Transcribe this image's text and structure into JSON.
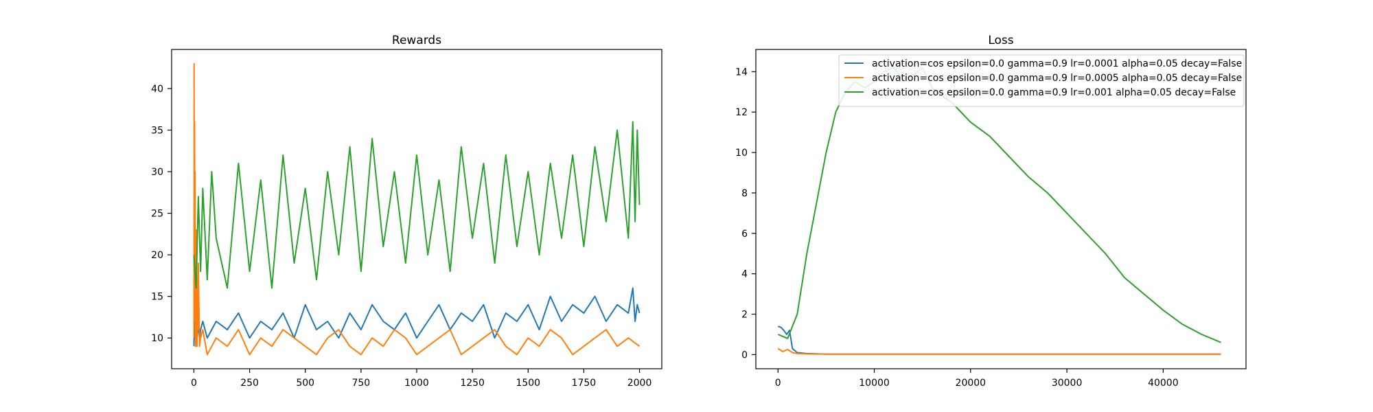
{
  "chart_data": [
    {
      "type": "line",
      "title": "Rewards",
      "xlabel": "",
      "ylabel": "",
      "xlim": [
        -100,
        2100
      ],
      "ylim": [
        6.3,
        44.7
      ],
      "xticks": [
        0,
        250,
        500,
        750,
        1000,
        1250,
        1500,
        1750,
        2000
      ],
      "xtick_labels": [
        "0",
        "250",
        "500",
        "750",
        "1000",
        "1250",
        "1500",
        "1750",
        "2000"
      ],
      "yticks": [
        10,
        15,
        20,
        25,
        30,
        35,
        40
      ],
      "ytick_labels": [
        "10",
        "15",
        "20",
        "25",
        "30",
        "35",
        "40"
      ],
      "grid": false,
      "series": [
        {
          "color": "#1f77b4",
          "x": [
            0,
            2,
            4,
            6,
            8,
            10,
            15,
            20,
            25,
            30,
            40,
            60,
            100,
            150,
            200,
            250,
            300,
            350,
            400,
            450,
            500,
            550,
            600,
            650,
            700,
            750,
            800,
            850,
            900,
            950,
            1000,
            1050,
            1100,
            1150,
            1200,
            1250,
            1300,
            1350,
            1400,
            1450,
            1500,
            1550,
            1600,
            1650,
            1700,
            1750,
            1800,
            1850,
            1900,
            1950,
            1970,
            1980,
            1990,
            2000
          ],
          "y": [
            9,
            13,
            10,
            12,
            9,
            11,
            10,
            12,
            10,
            11,
            12,
            10,
            12,
            11,
            13,
            10,
            12,
            11,
            13,
            10,
            14,
            11,
            12,
            10,
            13,
            11,
            14,
            12,
            11,
            13,
            10,
            12,
            14,
            11,
            13,
            12,
            14,
            10,
            13,
            12,
            14,
            11,
            15,
            12,
            14,
            13,
            15,
            12,
            14,
            13,
            16,
            12,
            14,
            13
          ]
        },
        {
          "color": "#ff7f0e",
          "x": [
            0,
            1,
            2,
            3,
            4,
            5,
            6,
            7,
            8,
            9,
            10,
            12,
            14,
            16,
            18,
            20,
            25,
            30,
            40,
            60,
            100,
            150,
            200,
            250,
            300,
            350,
            400,
            450,
            500,
            550,
            600,
            650,
            700,
            750,
            800,
            850,
            900,
            950,
            1000,
            1050,
            1100,
            1150,
            1200,
            1250,
            1300,
            1350,
            1400,
            1450,
            1500,
            1550,
            1600,
            1650,
            1700,
            1750,
            1800,
            1850,
            1900,
            1950,
            2000
          ],
          "y": [
            10,
            43,
            22,
            36,
            14,
            30,
            12,
            20,
            9,
            16,
            10,
            23,
            9,
            17,
            11,
            19,
            9,
            10,
            11,
            8,
            10,
            9,
            11,
            8,
            10,
            9,
            11,
            10,
            9,
            8,
            10,
            11,
            9,
            8,
            10,
            9,
            11,
            10,
            8,
            9,
            10,
            11,
            8,
            9,
            10,
            11,
            9,
            8,
            10,
            9,
            11,
            10,
            8,
            9,
            10,
            11,
            9,
            10,
            9
          ]
        },
        {
          "color": "#2ca02c",
          "x": [
            0,
            10,
            20,
            30,
            40,
            60,
            80,
            100,
            150,
            200,
            250,
            300,
            350,
            400,
            450,
            500,
            550,
            600,
            650,
            700,
            750,
            800,
            850,
            900,
            950,
            1000,
            1050,
            1100,
            1150,
            1200,
            1250,
            1300,
            1350,
            1400,
            1450,
            1500,
            1550,
            1600,
            1650,
            1700,
            1750,
            1800,
            1850,
            1900,
            1950,
            1970,
            1980,
            1990,
            2000
          ],
          "y": [
            20,
            16,
            27,
            18,
            28,
            17,
            30,
            22,
            16,
            31,
            18,
            29,
            16,
            32,
            19,
            28,
            17,
            30,
            20,
            33,
            18,
            34,
            21,
            30,
            19,
            32,
            20,
            29,
            18,
            33,
            22,
            31,
            19,
            32,
            21,
            30,
            20,
            31,
            22,
            32,
            21,
            33,
            24,
            35,
            22,
            36,
            24,
            35,
            26
          ]
        }
      ]
    },
    {
      "type": "line",
      "title": "Loss",
      "xlabel": "",
      "ylabel": "",
      "xlim": [
        -2300,
        48600
      ],
      "ylim": [
        -0.7,
        15.1
      ],
      "xticks": [
        0,
        10000,
        20000,
        30000,
        40000
      ],
      "xtick_labels": [
        "0",
        "10000",
        "20000",
        "30000",
        "40000"
      ],
      "yticks": [
        0,
        2,
        4,
        6,
        8,
        10,
        12,
        14
      ],
      "ytick_labels": [
        "0",
        "2",
        "4",
        "6",
        "8",
        "10",
        "12",
        "14"
      ],
      "grid": false,
      "legend": {
        "location": "upper right",
        "entries": [
          "activation=cos epsilon=0.0 gamma=0.9 lr=0.0001 alpha=0.05 decay=False",
          "activation=cos epsilon=0.0 gamma=0.9 lr=0.0005 alpha=0.05 decay=False",
          "activation=cos epsilon=0.0 gamma=0.9 lr=0.001 alpha=0.05 decay=False"
        ]
      },
      "series": [
        {
          "color": "#1f77b4",
          "x": [
            0,
            300,
            600,
            900,
            1200,
            1500,
            2000,
            3000,
            5000,
            10000,
            20000,
            30000,
            40000,
            46000
          ],
          "y": [
            1.4,
            1.35,
            1.2,
            1.0,
            1.2,
            0.3,
            0.1,
            0.05,
            0.02,
            0.02,
            0.02,
            0.02,
            0.02,
            0.02
          ]
        },
        {
          "color": "#ff7f0e",
          "x": [
            0,
            500,
            1000,
            1500,
            2000,
            3000,
            5000,
            10000,
            20000,
            30000,
            40000,
            46000
          ],
          "y": [
            0.3,
            0.15,
            0.25,
            0.1,
            0.05,
            0.03,
            0.02,
            0.02,
            0.02,
            0.02,
            0.02,
            0.02
          ]
        },
        {
          "color": "#2ca02c",
          "x": [
            0,
            1000,
            2000,
            3000,
            4000,
            5000,
            6000,
            7000,
            8000,
            9000,
            10000,
            11000,
            12000,
            13000,
            14000,
            15000,
            16000,
            17000,
            18000,
            20000,
            22000,
            24000,
            26000,
            28000,
            30000,
            32000,
            34000,
            36000,
            38000,
            40000,
            42000,
            44000,
            46000
          ],
          "y": [
            1.0,
            0.8,
            2.0,
            5.0,
            7.5,
            10.0,
            12.0,
            13.0,
            13.5,
            13.2,
            13.5,
            14.0,
            14.2,
            13.6,
            13.8,
            14.2,
            13.2,
            12.8,
            12.5,
            11.5,
            10.8,
            9.8,
            8.8,
            8.0,
            7.0,
            6.0,
            5.0,
            3.8,
            3.0,
            2.2,
            1.5,
            1.0,
            0.6
          ]
        }
      ]
    }
  ]
}
